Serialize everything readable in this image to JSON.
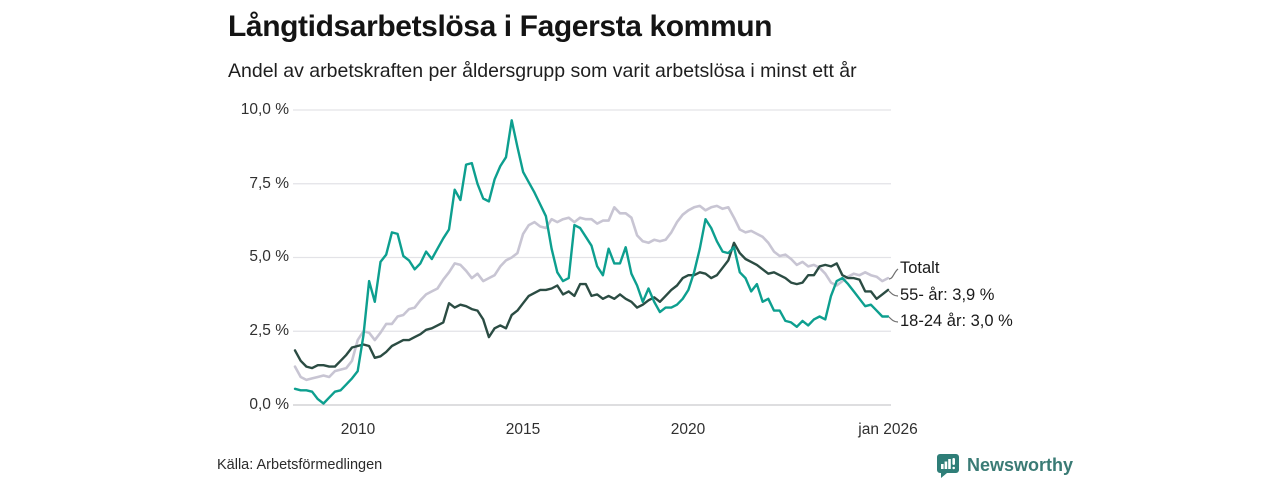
{
  "header": {
    "title": "Långtidsarbetslösa i Fagersta kommun",
    "subtitle": "Andel av arbetskraften per åldersgrupp som varit arbetslösa i minst ett år"
  },
  "chart_data": {
    "type": "line",
    "title": "Långtidsarbetslösa i Fagersta kommun",
    "subtitle": "Andel av arbetskraften per åldersgrupp som varit arbetslösa i minst ett år",
    "unit": "%",
    "ylim": [
      0,
      10
    ],
    "yticks": [
      0,
      2.5,
      5,
      7.5,
      10
    ],
    "ytick_labels": [
      "0,0 %",
      "2,5 %",
      "5,0 %",
      "7,5 %",
      "10,0 %"
    ],
    "xtick_labels": [
      "2010",
      "2015",
      "2020",
      "jan 2026"
    ],
    "x_axis": {
      "start_year": 2008.1,
      "end_year": 2026.05,
      "end_label": "jan 2026",
      "sampling": "ca 2 månader"
    },
    "grid": "horizontal",
    "legend_position": "right-end-labels",
    "colors": {
      "totalt": "#c8c5d3",
      "aldre": "#2b4c43",
      "unga": "#0d9f8f"
    },
    "series": [
      {
        "name": "Totalt",
        "end_label": "Totalt",
        "color": "#c8c5d3",
        "width": 2.6,
        "values": [
          1.3,
          0.95,
          0.85,
          0.9,
          0.95,
          1.0,
          0.95,
          1.15,
          1.2,
          1.25,
          1.5,
          2.2,
          2.5,
          2.45,
          2.2,
          2.45,
          2.75,
          2.75,
          3.0,
          3.05,
          3.25,
          3.3,
          3.55,
          3.75,
          3.85,
          3.95,
          4.25,
          4.5,
          4.8,
          4.75,
          4.55,
          4.3,
          4.45,
          4.2,
          4.3,
          4.4,
          4.7,
          4.9,
          5.0,
          5.15,
          5.8,
          6.1,
          6.2,
          6.05,
          6.0,
          6.3,
          6.2,
          6.3,
          6.35,
          6.2,
          6.35,
          6.3,
          6.3,
          6.15,
          6.25,
          6.25,
          6.7,
          6.5,
          6.5,
          6.35,
          5.75,
          5.55,
          5.5,
          5.6,
          5.55,
          5.6,
          5.85,
          6.2,
          6.45,
          6.6,
          6.7,
          6.75,
          6.6,
          6.7,
          6.75,
          6.65,
          6.7,
          6.35,
          5.95,
          5.85,
          5.9,
          5.8,
          5.7,
          5.5,
          5.2,
          5.05,
          5.1,
          4.95,
          4.75,
          4.85,
          4.7,
          4.75,
          4.65,
          4.45,
          4.15,
          4.05,
          4.2,
          4.35,
          4.45,
          4.4,
          4.5,
          4.4,
          4.35,
          4.2,
          4.3
        ]
      },
      {
        "name": "55- år",
        "end_label": "55- år: 3,9 %",
        "end_value": "3,9 %",
        "color": "#2b4c43",
        "width": 2.4,
        "values": [
          1.85,
          1.5,
          1.3,
          1.25,
          1.35,
          1.35,
          1.3,
          1.3,
          1.5,
          1.7,
          1.95,
          2.0,
          2.05,
          2.0,
          1.6,
          1.65,
          1.8,
          2.0,
          2.1,
          2.2,
          2.2,
          2.3,
          2.4,
          2.55,
          2.6,
          2.7,
          2.8,
          3.45,
          3.3,
          3.4,
          3.35,
          3.25,
          3.2,
          2.9,
          2.3,
          2.6,
          2.7,
          2.6,
          3.05,
          3.2,
          3.45,
          3.7,
          3.8,
          3.9,
          3.9,
          3.95,
          4.05,
          3.75,
          3.85,
          3.7,
          4.1,
          4.1,
          3.7,
          3.75,
          3.6,
          3.7,
          3.6,
          3.75,
          3.6,
          3.5,
          3.3,
          3.4,
          3.55,
          3.65,
          3.5,
          3.7,
          3.9,
          4.05,
          4.3,
          4.4,
          4.4,
          4.5,
          4.45,
          4.3,
          4.4,
          4.65,
          4.9,
          5.5,
          5.15,
          4.95,
          4.85,
          4.75,
          4.6,
          4.45,
          4.5,
          4.4,
          4.3,
          4.15,
          4.1,
          4.15,
          4.4,
          4.4,
          4.7,
          4.75,
          4.7,
          4.8,
          4.4,
          4.3,
          4.3,
          4.25,
          3.85,
          3.85,
          3.6,
          3.75,
          3.9
        ]
      },
      {
        "name": "18-24 år",
        "end_label": "18-24 år: 3,0 %",
        "end_value": "3,0 %",
        "color": "#0d9f8f",
        "width": 2.4,
        "values": [
          0.55,
          0.5,
          0.5,
          0.45,
          0.2,
          0.05,
          0.25,
          0.45,
          0.5,
          0.7,
          0.9,
          1.15,
          2.35,
          4.2,
          3.5,
          4.85,
          5.1,
          5.85,
          5.8,
          5.05,
          4.9,
          4.6,
          4.8,
          5.2,
          4.95,
          5.3,
          5.65,
          5.95,
          7.3,
          6.95,
          8.15,
          8.2,
          7.5,
          7.0,
          6.9,
          7.65,
          8.1,
          8.4,
          9.65,
          8.75,
          7.9,
          7.55,
          7.2,
          6.8,
          6.4,
          5.3,
          4.5,
          4.2,
          4.3,
          6.1,
          6.0,
          5.7,
          5.4,
          4.7,
          4.4,
          5.3,
          4.8,
          4.8,
          5.35,
          4.45,
          4.05,
          3.5,
          3.95,
          3.5,
          3.15,
          3.3,
          3.3,
          3.4,
          3.6,
          3.9,
          4.5,
          5.3,
          6.3,
          6.0,
          5.55,
          5.2,
          5.15,
          5.35,
          4.5,
          4.3,
          3.85,
          4.1,
          3.5,
          3.6,
          3.2,
          3.2,
          2.85,
          2.8,
          2.65,
          2.85,
          2.7,
          2.9,
          3.0,
          2.9,
          3.7,
          4.2,
          4.3,
          4.1,
          3.85,
          3.6,
          3.35,
          3.4,
          3.2,
          3.0,
          3.0
        ]
      }
    ]
  },
  "footer": {
    "source": "Källa: Arbetsförmedlingen",
    "brand": "Newsworthy"
  }
}
